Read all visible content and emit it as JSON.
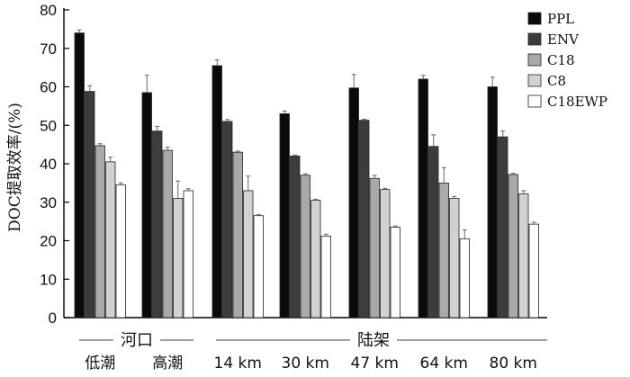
{
  "chart_data": {
    "type": "bar",
    "title": "",
    "ylabel": "DOC提取效率/(%)",
    "xlabel": "",
    "ylim": [
      0,
      80
    ],
    "yticks": [
      0,
      10,
      20,
      30,
      40,
      50,
      60,
      70,
      80
    ],
    "legend_position": "top-right",
    "grid": false,
    "categories": [
      "低潮",
      "高潮",
      "14 km",
      "30 km",
      "47 km",
      "64 km",
      "80 km"
    ],
    "category_groups": [
      {
        "label": "河口",
        "categories": [
          "低潮",
          "高潮"
        ]
      },
      {
        "label": "陆架",
        "categories": [
          "14 km",
          "30 km",
          "47 km",
          "64 km",
          "80 km"
        ]
      }
    ],
    "series": [
      {
        "name": "PPL",
        "color": "#0a0a0a",
        "values": [
          74.0,
          58.5,
          65.5,
          53.0,
          59.7,
          62.0,
          60.0
        ],
        "errors": [
          0.8,
          4.5,
          1.5,
          0.7,
          3.5,
          1.0,
          2.5
        ]
      },
      {
        "name": "ENV",
        "color": "#3c3c3c",
        "values": [
          58.8,
          48.5,
          51.0,
          42.0,
          51.3,
          44.5,
          47.0
        ],
        "errors": [
          1.5,
          1.2,
          0.5,
          0.3,
          0.3,
          3.0,
          1.5
        ]
      },
      {
        "name": "C18",
        "color": "#a9a9a9",
        "values": [
          44.7,
          43.5,
          43.0,
          37.0,
          36.2,
          35.0,
          37.2
        ],
        "errors": [
          0.5,
          0.8,
          0.3,
          0.4,
          0.8,
          4.0,
          0.3
        ]
      },
      {
        "name": "C8",
        "color": "#d2d2d2",
        "values": [
          40.5,
          31.0,
          33.0,
          30.5,
          33.3,
          31.0,
          32.2
        ],
        "errors": [
          1.2,
          4.5,
          3.8,
          0.3,
          0.3,
          0.5,
          0.8
        ]
      },
      {
        "name": "C18EWP",
        "color": "#ffffff",
        "values": [
          34.5,
          33.0,
          26.5,
          21.2,
          23.5,
          20.5,
          24.3
        ],
        "errors": [
          0.5,
          0.5,
          0.3,
          0.5,
          0.3,
          2.3,
          0.5
        ]
      }
    ]
  }
}
